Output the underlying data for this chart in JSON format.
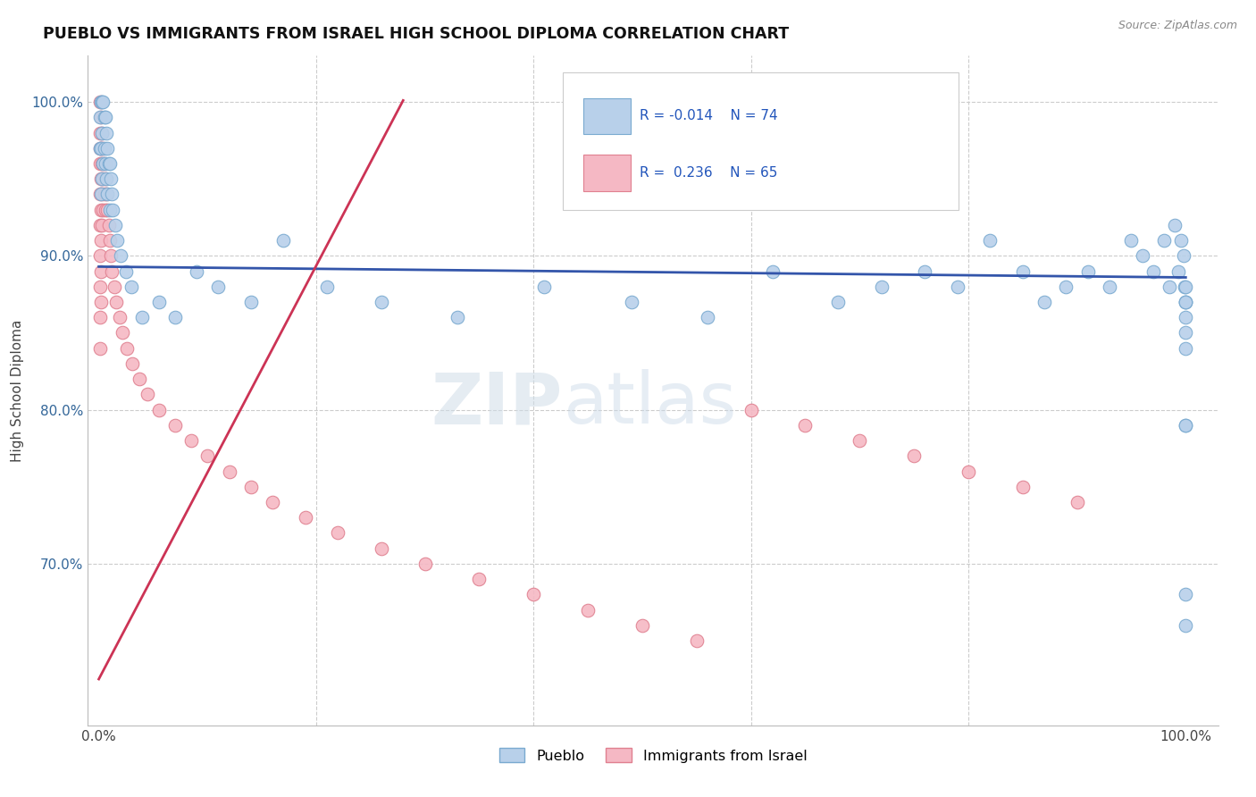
{
  "title": "PUEBLO VS IMMIGRANTS FROM ISRAEL HIGH SCHOOL DIPLOMA CORRELATION CHART",
  "source": "Source: ZipAtlas.com",
  "ylabel": "High School Diploma",
  "blue_color": "#b8d0ea",
  "pink_color": "#f5b8c4",
  "blue_edge": "#7aaad0",
  "pink_edge": "#e08090",
  "blue_line_color": "#3355aa",
  "pink_line_color": "#cc3355",
  "watermark_zip": "ZIP",
  "watermark_atlas": "atlas",
  "blue_label": "Pueblo",
  "pink_label": "Immigrants from Israel",
  "pueblo_x": [
    0.001,
    0.001,
    0.002,
    0.002,
    0.002,
    0.003,
    0.003,
    0.003,
    0.004,
    0.004,
    0.005,
    0.005,
    0.006,
    0.006,
    0.007,
    0.007,
    0.008,
    0.008,
    0.009,
    0.01,
    0.01,
    0.011,
    0.012,
    0.013,
    0.015,
    0.017,
    0.02,
    0.025,
    0.03,
    0.04,
    0.055,
    0.07,
    0.09,
    0.11,
    0.14,
    0.17,
    0.21,
    0.26,
    0.33,
    0.41,
    0.49,
    0.56,
    0.62,
    0.68,
    0.72,
    0.76,
    0.79,
    0.82,
    0.85,
    0.87,
    0.89,
    0.91,
    0.93,
    0.95,
    0.96,
    0.97,
    0.98,
    0.985,
    0.99,
    0.993,
    0.996,
    0.998,
    0.999,
    1.0,
    1.0,
    1.0,
    1.0,
    1.0,
    1.0,
    1.0,
    1.0,
    1.0,
    1.0,
    1.0
  ],
  "pueblo_y": [
    0.97,
    0.99,
    0.94,
    0.97,
    1.0,
    0.95,
    0.98,
    1.0,
    0.96,
    1.0,
    0.97,
    0.99,
    0.96,
    0.99,
    0.95,
    0.98,
    0.94,
    0.97,
    0.96,
    0.93,
    0.96,
    0.95,
    0.94,
    0.93,
    0.92,
    0.91,
    0.9,
    0.89,
    0.88,
    0.86,
    0.87,
    0.86,
    0.89,
    0.88,
    0.87,
    0.91,
    0.88,
    0.87,
    0.86,
    0.88,
    0.87,
    0.86,
    0.89,
    0.87,
    0.88,
    0.89,
    0.88,
    0.91,
    0.89,
    0.87,
    0.88,
    0.89,
    0.88,
    0.91,
    0.9,
    0.89,
    0.91,
    0.88,
    0.92,
    0.89,
    0.91,
    0.9,
    0.88,
    0.84,
    0.87,
    0.79,
    0.87,
    0.79,
    0.66,
    0.68,
    0.87,
    0.88,
    0.86,
    0.85
  ],
  "israel_x": [
    0.001,
    0.001,
    0.001,
    0.001,
    0.001,
    0.001,
    0.001,
    0.001,
    0.001,
    0.001,
    0.002,
    0.002,
    0.002,
    0.002,
    0.002,
    0.002,
    0.002,
    0.003,
    0.003,
    0.003,
    0.003,
    0.004,
    0.004,
    0.004,
    0.005,
    0.005,
    0.006,
    0.006,
    0.007,
    0.008,
    0.009,
    0.01,
    0.011,
    0.012,
    0.014,
    0.016,
    0.019,
    0.022,
    0.026,
    0.031,
    0.037,
    0.045,
    0.055,
    0.07,
    0.085,
    0.1,
    0.12,
    0.14,
    0.16,
    0.19,
    0.22,
    0.26,
    0.3,
    0.35,
    0.4,
    0.45,
    0.5,
    0.55,
    0.6,
    0.65,
    0.7,
    0.75,
    0.8,
    0.85,
    0.9
  ],
  "israel_y": [
    0.97,
    1.0,
    0.98,
    0.96,
    0.94,
    0.92,
    0.9,
    0.88,
    0.86,
    0.84,
    0.99,
    0.97,
    0.95,
    0.93,
    0.91,
    0.89,
    0.87,
    0.98,
    0.96,
    0.94,
    0.92,
    0.97,
    0.95,
    0.93,
    0.96,
    0.94,
    0.95,
    0.93,
    0.94,
    0.93,
    0.92,
    0.91,
    0.9,
    0.89,
    0.88,
    0.87,
    0.86,
    0.85,
    0.84,
    0.83,
    0.82,
    0.81,
    0.8,
    0.79,
    0.78,
    0.77,
    0.76,
    0.75,
    0.74,
    0.73,
    0.72,
    0.71,
    0.7,
    0.69,
    0.68,
    0.67,
    0.66,
    0.65,
    0.8,
    0.79,
    0.78,
    0.77,
    0.76,
    0.75,
    0.74
  ],
  "blue_trend_x": [
    0.0,
    1.0
  ],
  "blue_trend_y": [
    0.893,
    0.886
  ],
  "pink_trend_x": [
    0.0,
    0.28
  ],
  "pink_trend_y": [
    0.625,
    1.001
  ],
  "xlim": [
    -0.01,
    1.03
  ],
  "ylim": [
    0.595,
    1.03
  ],
  "xtick_positions": [
    0.0,
    0.2,
    0.4,
    0.6,
    0.8,
    1.0
  ],
  "xtick_labels": [
    "0.0%",
    "",
    "",
    "",
    "",
    "100.0%"
  ],
  "ytick_positions": [
    0.7,
    0.8,
    0.9,
    1.0
  ],
  "ytick_labels": [
    "70.0%",
    "80.0%",
    "90.0%",
    "100.0%"
  ]
}
